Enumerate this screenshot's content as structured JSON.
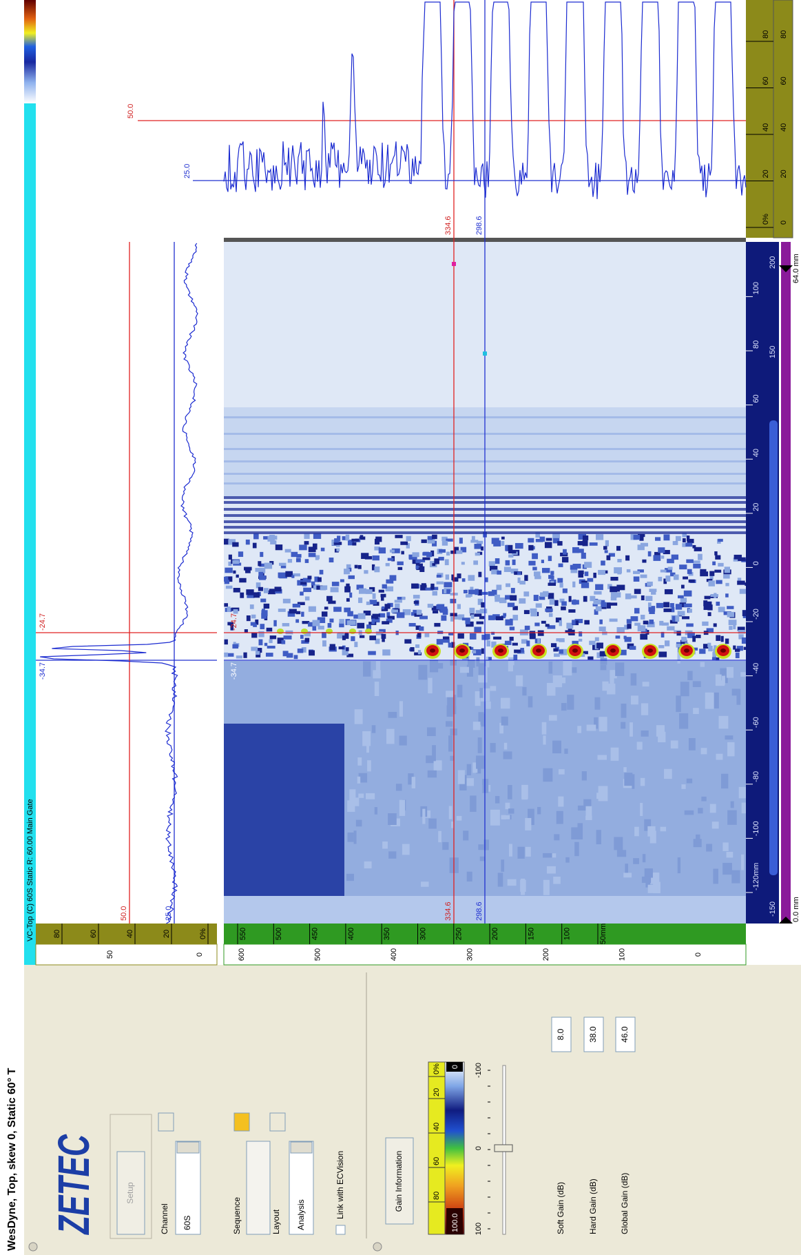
{
  "title": "WesDyne, Top, skew 0, Static 60° T",
  "view_header": "VC-Top (C) 60S Static R: 60.00 Main Gate",
  "control_panel": {
    "logo": "ZETEC",
    "setup_button": "Setup",
    "channel_label": "Channel",
    "channel_value": "60S",
    "sequence_label": "Sequence",
    "layout_label": "Layout",
    "layout_value": "Analysis",
    "link_checkbox": "Link with ECVision",
    "gain_button": "Gain Information",
    "palette_labels": [
      "100.0",
      "80",
      "60",
      "40",
      "20",
      "0%"
    ],
    "palette_end": "0",
    "slider_ticks": [
      "100",
      "0",
      "-100"
    ],
    "gains": [
      {
        "label": "Soft Gain (dB)",
        "value": "8.0"
      },
      {
        "label": "Hard Gain (dB)",
        "value": "38.0"
      },
      {
        "label": "Global Gain (dB)",
        "value": "46.0"
      }
    ]
  },
  "profile_plot": {
    "amplitude_ticks": [
      "0%",
      "20",
      "40",
      "60",
      "80"
    ],
    "scale_labels": [
      "0",
      "50"
    ],
    "cursor_amplitudes": [
      "50.0",
      "25.0"
    ],
    "cursor_positions": [
      "-34.7",
      "-24.7"
    ]
  },
  "cscan": {
    "scan_ticks": [
      "550",
      "500",
      "450",
      "400",
      "350",
      "300",
      "250",
      "200",
      "150",
      "100",
      "50mm"
    ],
    "scan_scale": [
      "600",
      "500",
      "400",
      "300",
      "200",
      "100",
      "0"
    ],
    "index_ticks": [
      "-120mm",
      "-100",
      "-80",
      "-60",
      "-40",
      "-20",
      "0",
      "20",
      "40",
      "60",
      "80",
      "100"
    ],
    "index_scale": [
      "-150",
      "150",
      "200"
    ],
    "cursor_positions": [
      "-34.7",
      "-24.7"
    ],
    "cursor_scans": [
      "334.6",
      "298.6"
    ],
    "index_range": [
      "0.0 mm",
      "64.0 mm"
    ]
  },
  "waveform_plot": {
    "cursor_amplitudes": [
      "50.0",
      "25.0"
    ],
    "cursor_scans": [
      "334.6",
      "298.6"
    ],
    "amplitude_ticks": [
      "0%",
      "20",
      "40",
      "60",
      "80"
    ],
    "scale_labels": [
      "0",
      "20",
      "40",
      "60",
      "80"
    ]
  }
}
